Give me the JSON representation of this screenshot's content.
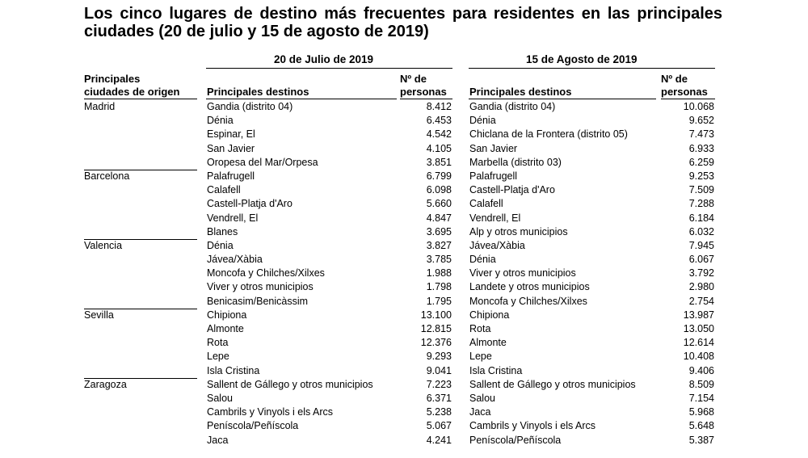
{
  "title": "Los cinco lugares de destino más frecuentes para residentes en las principales ciudades (20 de julio y 15 de agosto de 2019)",
  "headers": {
    "date1": "20 de Julio de 2019",
    "date2": "15 de Agosto de 2019",
    "origin_line1": "Principales",
    "origin_line2": "ciudades de origen",
    "dest_label": "Principales destinos",
    "num_line1": "Nº de",
    "num_line2": "personas"
  },
  "groups": [
    {
      "city": "Madrid",
      "rows": [
        {
          "d1": "Gandia (distrito 04)",
          "n1": "8.412",
          "d2": "Gandia (distrito 04)",
          "n2": "10.068"
        },
        {
          "d1": "Dénia",
          "n1": "6.453",
          "d2": "Dénia",
          "n2": "9.652"
        },
        {
          "d1": "Espinar, El",
          "n1": "4.542",
          "d2": "Chiclana de la Frontera (distrito 05)",
          "n2": "7.473"
        },
        {
          "d1": "San Javier",
          "n1": "4.105",
          "d2": "San Javier",
          "n2": "6.933"
        },
        {
          "d1": "Oropesa del Mar/Orpesa",
          "n1": "3.851",
          "d2": "Marbella (distrito 03)",
          "n2": "6.259"
        }
      ]
    },
    {
      "city": "Barcelona",
      "rows": [
        {
          "d1": "Palafrugell",
          "n1": "6.799",
          "d2": "Palafrugell",
          "n2": "9.253"
        },
        {
          "d1": "Calafell",
          "n1": "6.098",
          "d2": "Castell-Platja d'Aro",
          "n2": "7.509"
        },
        {
          "d1": "Castell-Platja d'Aro",
          "n1": "5.660",
          "d2": "Calafell",
          "n2": "7.288"
        },
        {
          "d1": "Vendrell, El",
          "n1": "4.847",
          "d2": "Vendrell, El",
          "n2": "6.184"
        },
        {
          "d1": "Blanes",
          "n1": "3.695",
          "d2": "Alp y otros municipios",
          "n2": "6.032"
        }
      ]
    },
    {
      "city": "Valencia",
      "rows": [
        {
          "d1": "Dénia",
          "n1": "3.827",
          "d2": "Jávea/Xàbia",
          "n2": "7.945"
        },
        {
          "d1": "Jávea/Xàbia",
          "n1": "3.785",
          "d2": "Dénia",
          "n2": "6.067"
        },
        {
          "d1": "Moncofa y Chilches/Xilxes",
          "n1": "1.988",
          "d2": "Viver y otros municipios",
          "n2": "3.792"
        },
        {
          "d1": "Viver y otros municipios",
          "n1": "1.798",
          "d2": "Landete y otros municipios",
          "n2": "2.980"
        },
        {
          "d1": "Benicasim/Benicàssim",
          "n1": "1.795",
          "d2": "Moncofa y Chilches/Xilxes",
          "n2": "2.754"
        }
      ]
    },
    {
      "city": "Sevilla",
      "rows": [
        {
          "d1": "Chipiona",
          "n1": "13.100",
          "d2": "Chipiona",
          "n2": "13.987"
        },
        {
          "d1": "Almonte",
          "n1": "12.815",
          "d2": "Rota",
          "n2": "13.050"
        },
        {
          "d1": "Rota",
          "n1": "12.376",
          "d2": "Almonte",
          "n2": "12.614"
        },
        {
          "d1": "Lepe",
          "n1": "9.293",
          "d2": "Lepe",
          "n2": "10.408"
        },
        {
          "d1": "Isla Cristina",
          "n1": "9.041",
          "d2": "Isla Cristina",
          "n2": "9.406"
        }
      ]
    },
    {
      "city": "Zaragoza",
      "rows": [
        {
          "d1": "Sallent de Gállego y otros municipios",
          "n1": "7.223",
          "d2": "Sallent de Gállego y otros municipios",
          "n2": "8.509"
        },
        {
          "d1": "Salou",
          "n1": "6.371",
          "d2": "Salou",
          "n2": "7.154"
        },
        {
          "d1": "Cambrils y Vinyols i els Arcs",
          "n1": "5.238",
          "d2": "Jaca",
          "n2": "5.968"
        },
        {
          "d1": "Peníscola/Peñíscola",
          "n1": "5.067",
          "d2": "Cambrils y Vinyols i els Arcs",
          "n2": "5.648"
        },
        {
          "d1": "Jaca",
          "n1": "4.241",
          "d2": "Peníscola/Peñíscola",
          "n2": "5.387"
        }
      ]
    }
  ]
}
